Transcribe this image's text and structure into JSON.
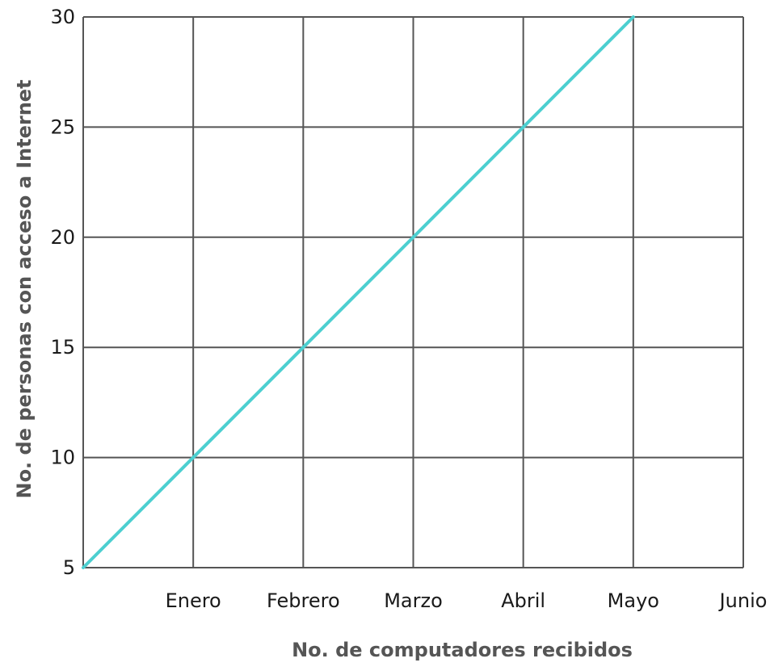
{
  "chart_data": {
    "type": "line",
    "title": "",
    "xlabel": "No. de computadores recibidos",
    "ylabel": "No. de personas con acceso a Internet",
    "categories": [
      "",
      "Enero",
      "Febrero",
      "Marzo",
      "Abril",
      "Mayo",
      "Junio"
    ],
    "y_ticks": [
      5,
      10,
      15,
      20,
      25,
      30
    ],
    "ylim": [
      5,
      30
    ],
    "series": [
      {
        "values": [
          5,
          10,
          15,
          20,
          25,
          30,
          null
        ]
      }
    ],
    "grid": true,
    "legend": "none",
    "colors": {
      "line": "#4ccfd0",
      "grid": "#555555",
      "text": "#1a1a1a",
      "axis_title": "#555555"
    }
  }
}
